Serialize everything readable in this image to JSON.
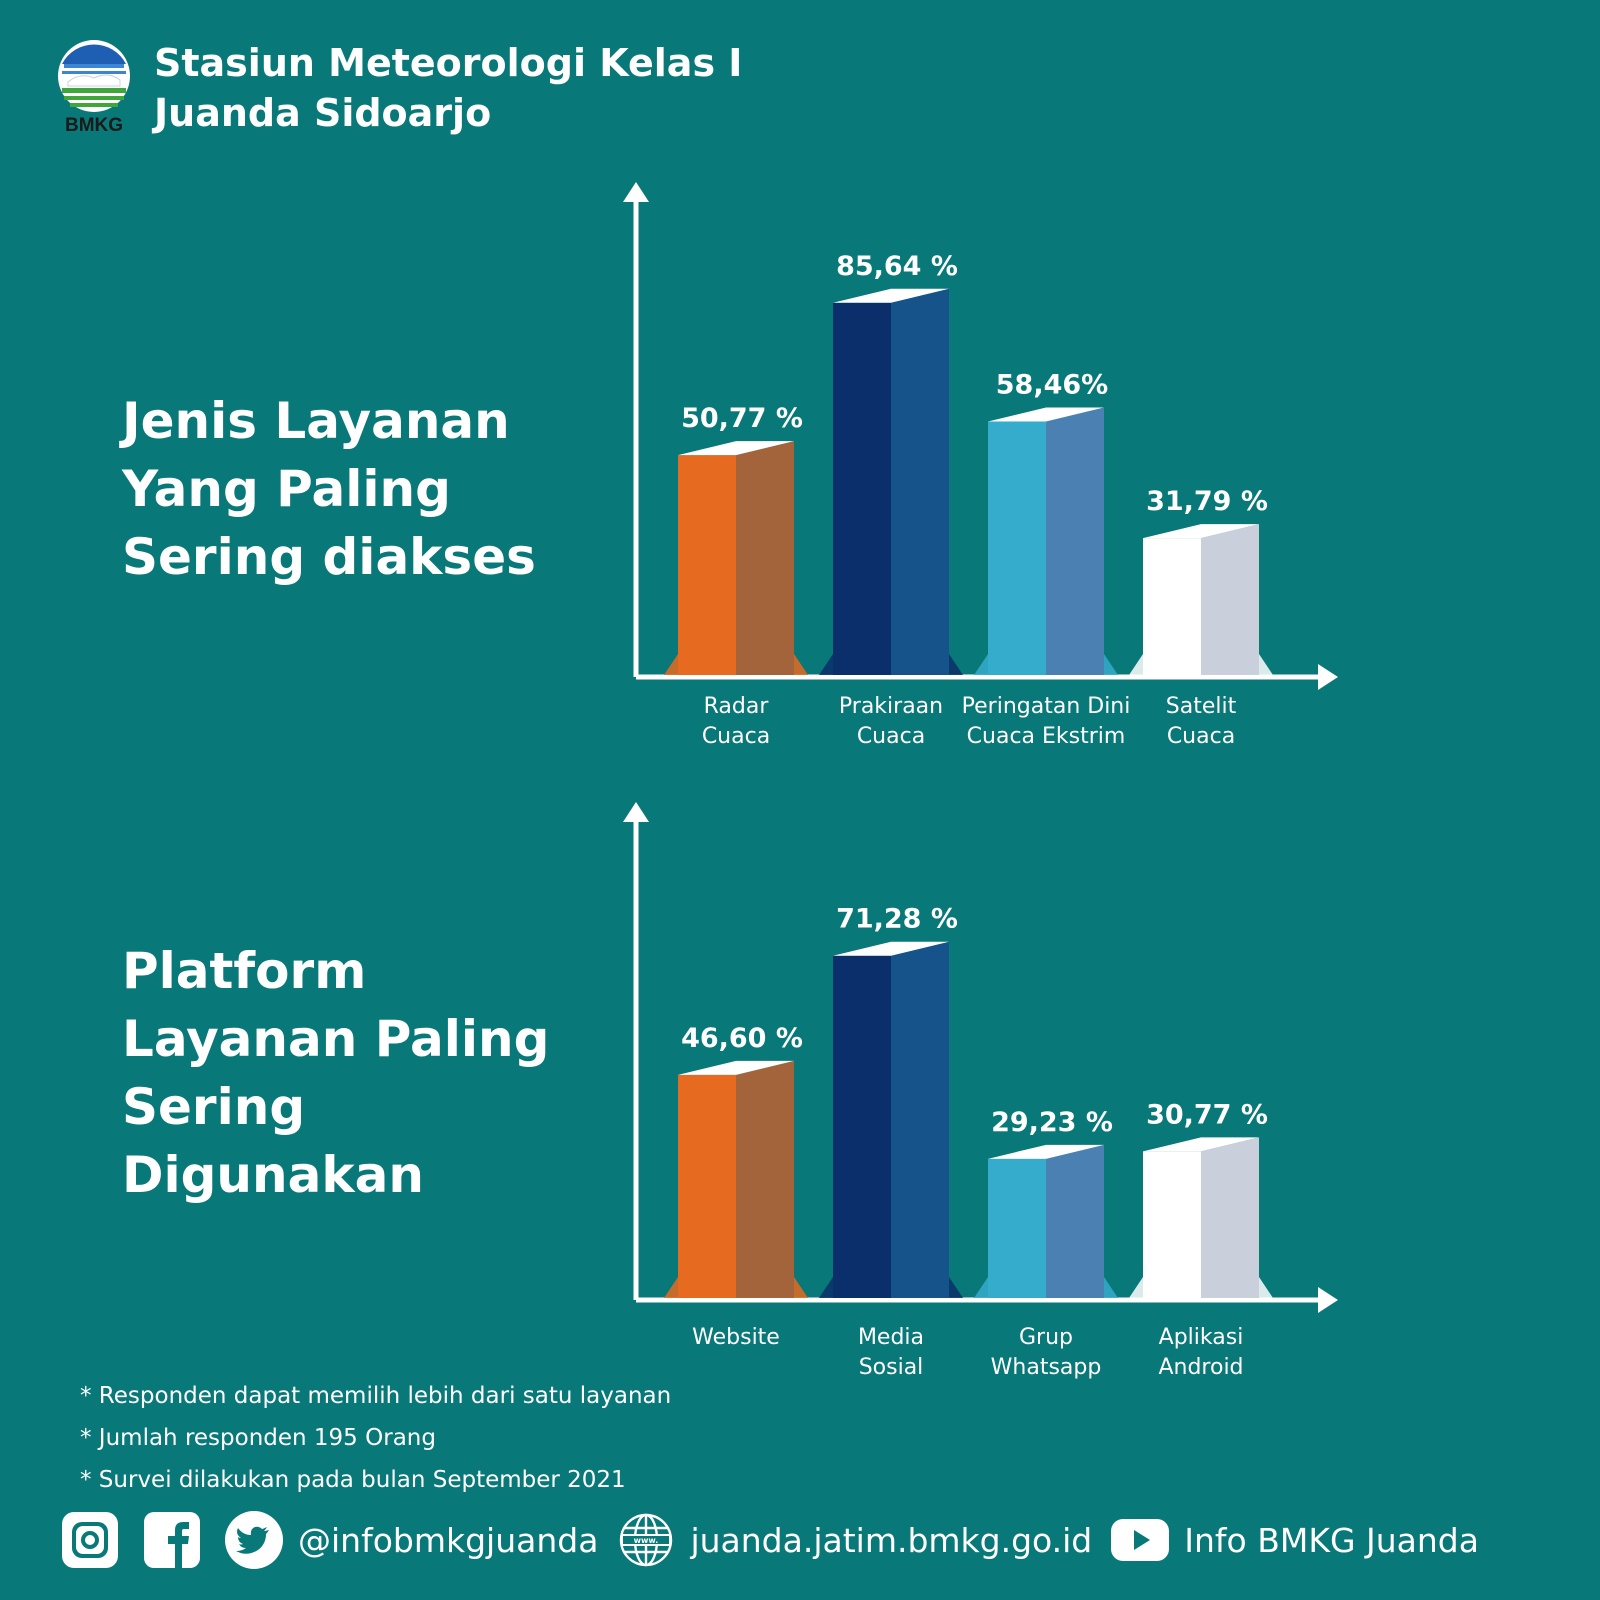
{
  "header": {
    "logo_text": "BMKG",
    "title_line1": "Stasiun Meteorologi Kelas I",
    "title_line2": "Juanda Sidoarjo"
  },
  "colors": {
    "background": "#087878",
    "orange": "#E66A1F",
    "navy": "#0B2F6A",
    "light_blue": "#36ACCC",
    "white": "#FFFFFF"
  },
  "chart_data": [
    {
      "type": "bar",
      "title": "Jenis Layanan Yang Paling Sering diakses",
      "title_lines": [
        "Jenis Layanan",
        "Yang Paling",
        "Sering diakses"
      ],
      "categories": [
        [
          "Radar",
          "Cuaca"
        ],
        [
          "Prakiraan",
          "Cuaca"
        ],
        [
          "Peringatan Dini",
          "Cuaca Ekstrim"
        ],
        [
          "Satelit",
          "Cuaca"
        ]
      ],
      "values": [
        50.77,
        85.64,
        58.46,
        31.79
      ],
      "value_labels": [
        "50,77 %",
        "85,64 %",
        "58,46%",
        "31,79 %"
      ],
      "bar_colors": [
        "orange",
        "navy",
        "light_blue",
        "white"
      ],
      "ylim": [
        0,
        100
      ],
      "grid": false
    },
    {
      "type": "bar",
      "title": "Platform Layanan Paling Sering Digunakan",
      "title_lines": [
        "Platform",
        "Layanan Paling",
        "Sering",
        "Digunakan"
      ],
      "categories": [
        [
          "Website"
        ],
        [
          "Media",
          "Sosial"
        ],
        [
          "Grup",
          "Whatsapp"
        ],
        [
          "Aplikasi",
          "Android"
        ]
      ],
      "values": [
        46.6,
        71.28,
        29.23,
        30.77
      ],
      "value_labels": [
        "46,60 %",
        "71,28 %",
        "29,23 %",
        "30,77 %"
      ],
      "bar_colors": [
        "orange",
        "navy",
        "light_blue",
        "white"
      ],
      "ylim": [
        0,
        100
      ],
      "grid": false
    }
  ],
  "notes": [
    "* Responden dapat memilih lebih dari satu layanan",
    "* Jumlah responden 195 Orang",
    "* Survei dilakukan pada bulan September 2021"
  ],
  "footer": {
    "social_handle": "@infobmkgjuanda",
    "website": "juanda.jatim.bmkg.go.id",
    "youtube": "Info BMKG Juanda",
    "icons": [
      "instagram-icon",
      "facebook-icon",
      "twitter-icon",
      "globe-icon",
      "youtube-icon"
    ]
  }
}
